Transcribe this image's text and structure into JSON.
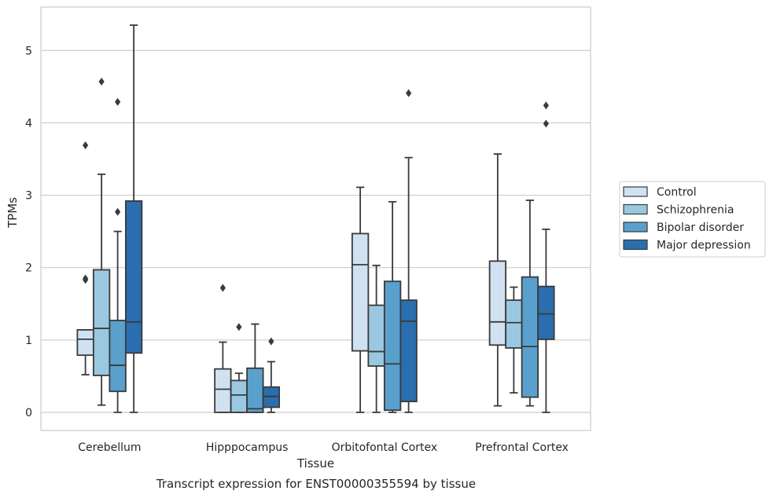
{
  "chart_data": {
    "type": "box",
    "title": "",
    "caption": "Transcript expression for ENST00000355594 by tissue",
    "xlabel": "Tissue",
    "ylabel": "TPMs",
    "ylim": [
      -0.25,
      5.6
    ],
    "yticks": [
      0,
      1,
      2,
      3,
      4,
      5
    ],
    "grid": "horizontal",
    "legend_position": "right",
    "categories": [
      "Cerebellum",
      "Hipppocampus",
      "Orbitofontal Cortex",
      "Prefrontal Cortex"
    ],
    "series": [
      {
        "name": "Control",
        "color": "#d0e1f2",
        "boxes": [
          {
            "whisker_low": 0.52,
            "q1": 0.79,
            "median": 1.01,
            "q3": 1.14,
            "whisker_high": 1.14,
            "outliers": [
              1.83,
              1.85,
              3.69
            ]
          },
          {
            "whisker_low": 0.0,
            "q1": 0.0,
            "median": 0.32,
            "q3": 0.6,
            "whisker_high": 0.97,
            "outliers": [
              1.72
            ]
          },
          {
            "whisker_low": 0.0,
            "q1": 0.85,
            "median": 2.04,
            "q3": 2.47,
            "whisker_high": 3.11,
            "outliers": []
          },
          {
            "whisker_low": 0.09,
            "q1": 0.93,
            "median": 1.25,
            "q3": 2.09,
            "whisker_high": 3.57,
            "outliers": []
          }
        ]
      },
      {
        "name": "Schizophrenia",
        "color": "#9ac8e0",
        "boxes": [
          {
            "whisker_low": 0.1,
            "q1": 0.51,
            "median": 1.16,
            "q3": 1.97,
            "whisker_high": 3.29,
            "outliers": [
              4.57
            ]
          },
          {
            "whisker_low": 0.0,
            "q1": 0.0,
            "median": 0.24,
            "q3": 0.44,
            "whisker_high": 0.54,
            "outliers": [
              1.18
            ]
          },
          {
            "whisker_low": 0.0,
            "q1": 0.64,
            "median": 0.84,
            "q3": 1.48,
            "whisker_high": 2.03,
            "outliers": []
          },
          {
            "whisker_low": 0.27,
            "q1": 0.89,
            "median": 1.24,
            "q3": 1.55,
            "whisker_high": 1.73,
            "outliers": []
          }
        ]
      },
      {
        "name": "Bipolar disorder",
        "color": "#5aa0cd",
        "boxes": [
          {
            "whisker_low": 0.0,
            "q1": 0.29,
            "median": 0.65,
            "q3": 1.27,
            "whisker_high": 2.5,
            "outliers": [
              2.77,
              4.29
            ]
          },
          {
            "whisker_low": 0.0,
            "q1": 0.0,
            "median": 0.05,
            "q3": 0.61,
            "whisker_high": 1.22,
            "outliers": []
          },
          {
            "whisker_low": 0.0,
            "q1": 0.03,
            "median": 0.67,
            "q3": 1.81,
            "whisker_high": 2.91,
            "outliers": []
          },
          {
            "whisker_low": 0.09,
            "q1": 0.21,
            "median": 0.91,
            "q3": 1.87,
            "whisker_high": 2.93,
            "outliers": []
          }
        ]
      },
      {
        "name": "Major depression",
        "color": "#2b6eaf",
        "boxes": [
          {
            "whisker_low": 0.0,
            "q1": 0.82,
            "median": 1.25,
            "q3": 2.92,
            "whisker_high": 5.35,
            "outliers": []
          },
          {
            "whisker_low": 0.0,
            "q1": 0.07,
            "median": 0.22,
            "q3": 0.35,
            "whisker_high": 0.7,
            "outliers": [
              0.98
            ]
          },
          {
            "whisker_low": 0.0,
            "q1": 0.15,
            "median": 1.26,
            "q3": 1.55,
            "whisker_high": 3.52,
            "outliers": [
              4.41
            ]
          },
          {
            "whisker_low": 0.0,
            "q1": 1.01,
            "median": 1.36,
            "q3": 1.74,
            "whisker_high": 2.53,
            "outliers": [
              3.99,
              4.24
            ]
          }
        ]
      }
    ]
  }
}
